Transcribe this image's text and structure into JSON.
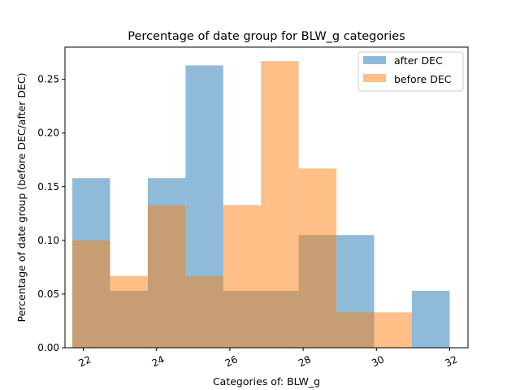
{
  "chart_data": {
    "type": "bar",
    "title": "Percentage of date group for BLW_g categories",
    "xlabel": "Categories of: BLW_g",
    "ylabel": "Percentage of date group (before DEC/after DEC)",
    "xlim": [
      21.5,
      32.5
    ],
    "ylim": [
      0,
      0.28
    ],
    "x_ticks": [
      22,
      24,
      26,
      28,
      30,
      32
    ],
    "x_tick_labels": [
      "22",
      "24",
      "26",
      "28",
      "30",
      "32"
    ],
    "y_ticks": [
      0,
      0.05,
      0.1,
      0.15,
      0.2,
      0.25
    ],
    "y_tick_labels": [
      "0.00",
      "0.05",
      "0.10",
      "0.15",
      "0.20",
      "0.25"
    ],
    "bin_edges": [
      21.7,
      22.73,
      23.76,
      24.79,
      25.82,
      26.85,
      27.88,
      28.91,
      29.94,
      30.97,
      32.0
    ],
    "series": [
      {
        "name": "after DEC",
        "color": "#1f77b4",
        "opacity": 0.5,
        "values": [
          0.158,
          0.053,
          0.158,
          0.263,
          0.053,
          0.053,
          0.105,
          0.105,
          0.0,
          0.053
        ]
      },
      {
        "name": "before DEC",
        "color": "#ff7f0e",
        "opacity": 0.5,
        "values": [
          0.1,
          0.067,
          0.133,
          0.067,
          0.133,
          0.267,
          0.167,
          0.033,
          0.033,
          0.0
        ]
      }
    ],
    "legend_position": "top-right",
    "grid": false
  }
}
